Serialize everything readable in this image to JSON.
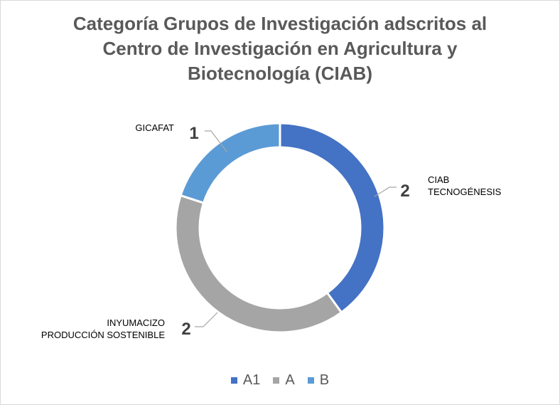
{
  "chart_data": {
    "type": "pie",
    "style": "donut",
    "title": "Categoría Grupos de Investigación adscritos al Centro de Investigación en Agricultura y Biotecnología (CIAB)",
    "slices": [
      {
        "category": "A1",
        "value": 2,
        "label_lines": [
          "CIAB",
          "TECNOGÉNESIS"
        ],
        "color": "#4472C4"
      },
      {
        "category": "A",
        "value": 2,
        "label_lines": [
          "INYUMACIZO",
          "PRODUCCIÓN SOSTENIBLE"
        ],
        "color": "#A5A5A5"
      },
      {
        "category": "B",
        "value": 1,
        "label_lines": [
          "GICAFAT"
        ],
        "color": "#5B9BD5"
      }
    ],
    "legend": {
      "placement": "bottom",
      "entries": [
        {
          "name": "A1",
          "color": "#4472C4"
        },
        {
          "name": "A",
          "color": "#A5A5A5"
        },
        {
          "name": "B",
          "color": "#5B9BD5"
        }
      ]
    }
  }
}
